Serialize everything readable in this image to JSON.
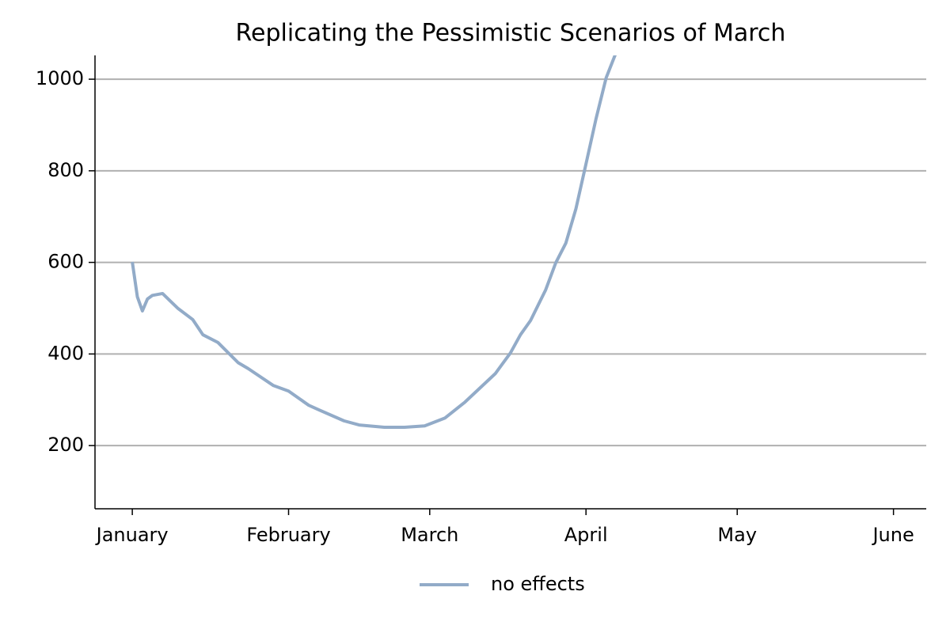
{
  "chart_data": {
    "type": "line",
    "title": "Replicating the Pessimistic Scenarios of March",
    "x": [
      0,
      1,
      2,
      3,
      4,
      6,
      9,
      12,
      14,
      17,
      21,
      23,
      28,
      31,
      35,
      37,
      42,
      45,
      50,
      54,
      58,
      62,
      66,
      72,
      75,
      77,
      79,
      82,
      84,
      86,
      88,
      90,
      92,
      94,
      96
    ],
    "series": [
      {
        "name": "no effects",
        "color": "#92abc8",
        "values": [
          601,
          525,
          494,
          520,
          528,
          532,
          500,
          475,
          442,
          425,
          381,
          368,
          331,
          319,
          288,
          278,
          254,
          245,
          240,
          240,
          243,
          260,
          295,
          357,
          402,
          442,
          473,
          540,
          599,
          642,
          717,
          815,
          914,
          1003,
          1059
        ]
      }
    ],
    "xlim": [
      -7.4,
      157.5
    ],
    "xticks": [
      {
        "value": 0,
        "label": "January"
      },
      {
        "value": 31,
        "label": "February"
      },
      {
        "value": 59,
        "label": "March"
      },
      {
        "value": 90,
        "label": "April"
      },
      {
        "value": 120,
        "label": "May"
      },
      {
        "value": 151,
        "label": "June"
      }
    ],
    "ylim": [
      62,
      1052
    ],
    "yticks": [
      200,
      400,
      600,
      800,
      1000
    ],
    "grid": true,
    "legend": "bottom"
  }
}
